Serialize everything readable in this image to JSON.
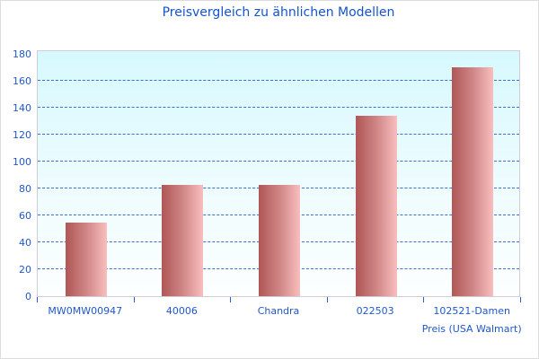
{
  "title": "Preisvergleich zu ähnlichen Modellen",
  "colors": {
    "title_text": "#1353cb",
    "axis_label_text": "#2158c8",
    "gridline": "#3d6cd7",
    "tick_mark": "#2a5bd7",
    "bar_gradient_start": "#b05656",
    "bar_gradient_end": "#f9bebe",
    "plot_background_top": "#d6f9fe",
    "plot_background_bottom": "#fdffff",
    "plot_border": "#d2ccd9"
  },
  "chart_data": {
    "type": "bar",
    "title": "Preisvergleich zu ähnlichen Modellen",
    "categories": [
      "MW0MW00947",
      "40006",
      "Chandra",
      "022503",
      "102521-Damen\nPreis (USA Walmart)"
    ],
    "values": [
      55,
      83,
      83,
      134,
      170
    ],
    "xlabel": "",
    "ylabel": "",
    "ylim": [
      0,
      183
    ],
    "yticks": [
      0,
      20,
      40,
      60,
      80,
      100,
      120,
      140,
      160,
      180
    ],
    "grid": "horizontal-dashed",
    "legend": "none",
    "bar_style": "vertical, left-to-right red-to-pink gradient"
  }
}
